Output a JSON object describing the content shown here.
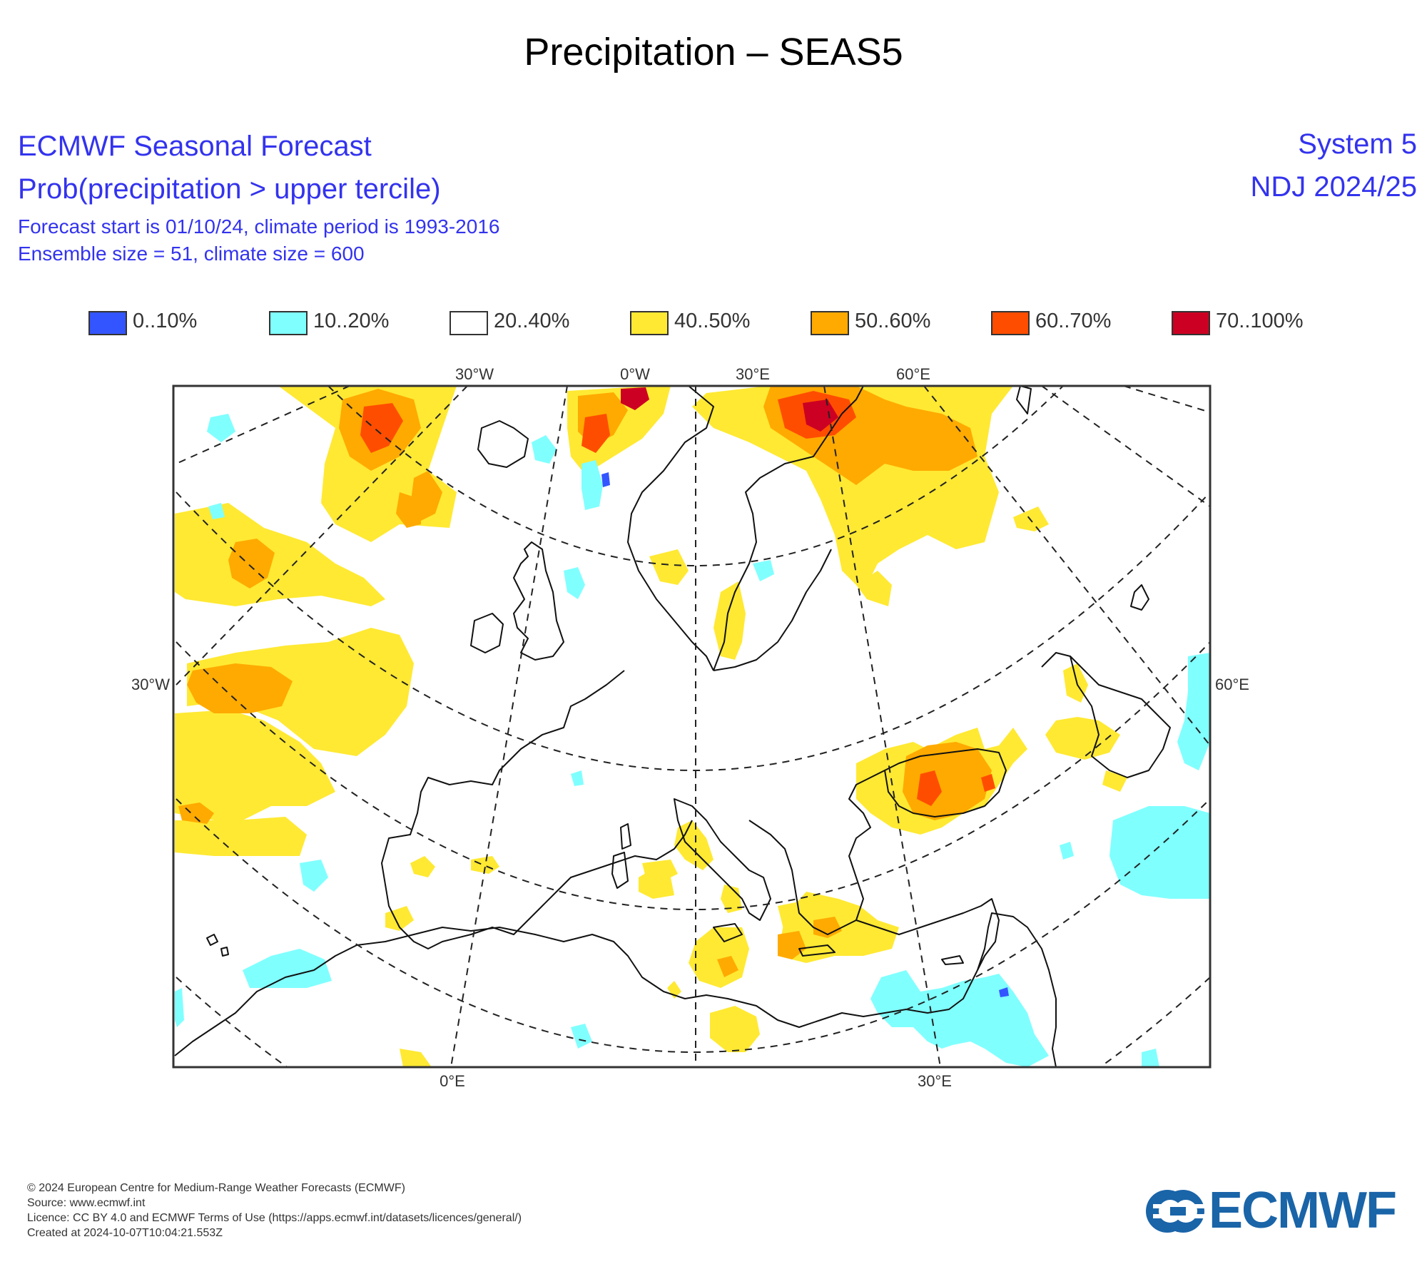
{
  "page": {
    "title": "Precipitation – SEAS5"
  },
  "header": {
    "left": [
      "ECMWF Seasonal Forecast",
      "Prob(precipitation > upper tercile)",
      "Forecast start is 01/10/24, climate period is 1993-2016",
      "Ensemble size = 51, climate size = 600"
    ],
    "right": [
      "System 5",
      "NDJ 2024/25"
    ]
  },
  "legend": [
    {
      "label": "0..10%",
      "color": "#3355ff"
    },
    {
      "label": "10..20%",
      "color": "#80ffff"
    },
    {
      "label": "20..40%",
      "color": "#ffffff"
    },
    {
      "label": "40..50%",
      "color": "#ffe933"
    },
    {
      "label": "50..60%",
      "color": "#ffaa00"
    },
    {
      "label": "60..70%",
      "color": "#ff4d00"
    },
    {
      "label": "70..100%",
      "color": "#cc0022"
    }
  ],
  "map": {
    "lon_labels_top": [
      "30°W",
      "0°W",
      "30°E",
      "60°E"
    ],
    "lon_labels_bottom": [
      "0°E",
      "30°E"
    ],
    "lat_labels_left": [
      "30°W"
    ],
    "lat_labels_right": [
      "60°E"
    ],
    "region": "Europe / North Atlantic / Mediterranean",
    "colors": {
      "frame": "#333333",
      "coast": "#111111"
    }
  },
  "footer": [
    "© 2024 European Centre for Medium-Range Weather Forecasts (ECMWF)",
    "Source: www.ecmwf.int",
    "Licence: CC BY 4.0 and ECMWF Terms of Use (https://apps.ecmwf.int/datasets/licences/general/)",
    "Created at 2024-10-07T10:04:21.553Z"
  ],
  "logo": {
    "text": "ECMWF",
    "color": "#1a64a8"
  }
}
